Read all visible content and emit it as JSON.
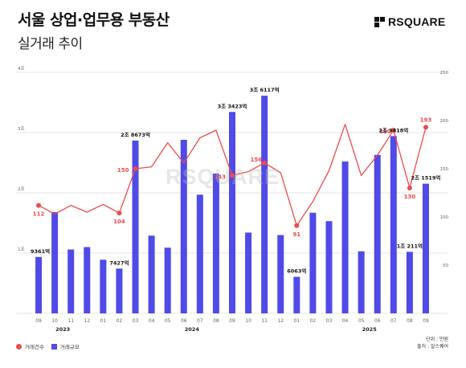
{
  "header": {
    "title": "서울 상업·업무용 부동산",
    "subtitle": "실거래 추이",
    "logo_text": "RSQUARE"
  },
  "watermark": "RSQUARE",
  "legend": {
    "count_label": "거래건수",
    "volume_label": "거래규모"
  },
  "notes": {
    "unit": "단위 : 만원",
    "source": "출처 : 알스퀘어"
  },
  "colors": {
    "bar": "#4f4ae8",
    "line": "#ef4b4b",
    "grid": "#dddddd"
  },
  "chart_data": {
    "type": "bar+line",
    "categories": [
      "09",
      "10",
      "11",
      "12",
      "01",
      "02",
      "03",
      "04",
      "05",
      "06",
      "07",
      "08",
      "09",
      "10",
      "11",
      "12",
      "01",
      "02",
      "03",
      "04",
      "05",
      "06",
      "07",
      "08",
      "09"
    ],
    "year_labels": [
      {
        "label": "2023",
        "index": 1.5
      },
      {
        "label": "2024",
        "index": 9.5
      },
      {
        "label": "2025",
        "index": 20.5
      }
    ],
    "left_axis": {
      "ticks": [
        0,
        10000,
        20000,
        30000,
        40000
      ],
      "tick_labels": [
        "",
        "1조",
        "2조",
        "3조",
        "4조"
      ],
      "ylim": [
        0,
        40000
      ]
    },
    "right_axis": {
      "ticks": [
        0,
        50,
        100,
        150,
        200,
        250
      ],
      "tick_labels": [
        "",
        "50",
        "100",
        "150",
        "200",
        "250"
      ],
      "ylim": [
        0,
        250
      ]
    },
    "series": [
      {
        "name": "거래규모",
        "type": "bar",
        "axis": "left",
        "values": [
          9361,
          16800,
          10600,
          11000,
          8900,
          7427,
          28673,
          12900,
          10900,
          28800,
          19700,
          23200,
          33423,
          13400,
          36117,
          13000,
          6063,
          16700,
          15300,
          25200,
          10300,
          26300,
          29418,
          10211,
          21519
        ]
      },
      {
        "name": "거래건수",
        "type": "line",
        "axis": "right",
        "values": [
          112,
          103,
          112,
          105,
          113,
          104,
          150,
          152,
          177,
          156,
          182,
          190,
          143,
          147,
          156,
          146,
          91,
          116,
          148,
          196,
          143,
          164,
          190,
          130,
          193
        ]
      }
    ],
    "bar_labels": [
      {
        "index": 0,
        "text": "9361억"
      },
      {
        "index": 5,
        "text": "7427억"
      },
      {
        "index": 6,
        "text": "2조 8673억"
      },
      {
        "index": 12,
        "text": "3조 3423억"
      },
      {
        "index": 14,
        "text": "3조 6117억"
      },
      {
        "index": 16,
        "text": "6063억"
      },
      {
        "index": 22,
        "text": "2조 9418억"
      },
      {
        "index": 23,
        "text": "1조 211억"
      },
      {
        "index": 24,
        "text": "2조 1519억"
      }
    ],
    "point_labels": [
      {
        "index": 0,
        "text": "112"
      },
      {
        "index": 5,
        "text": "104"
      },
      {
        "index": 6,
        "text": "150"
      },
      {
        "index": 12,
        "text": "143"
      },
      {
        "index": 14,
        "text": "156"
      },
      {
        "index": 16,
        "text": "91"
      },
      {
        "index": 22,
        "text": "190"
      },
      {
        "index": 23,
        "text": "130"
      },
      {
        "index": 24,
        "text": "193"
      }
    ],
    "grid": true
  }
}
